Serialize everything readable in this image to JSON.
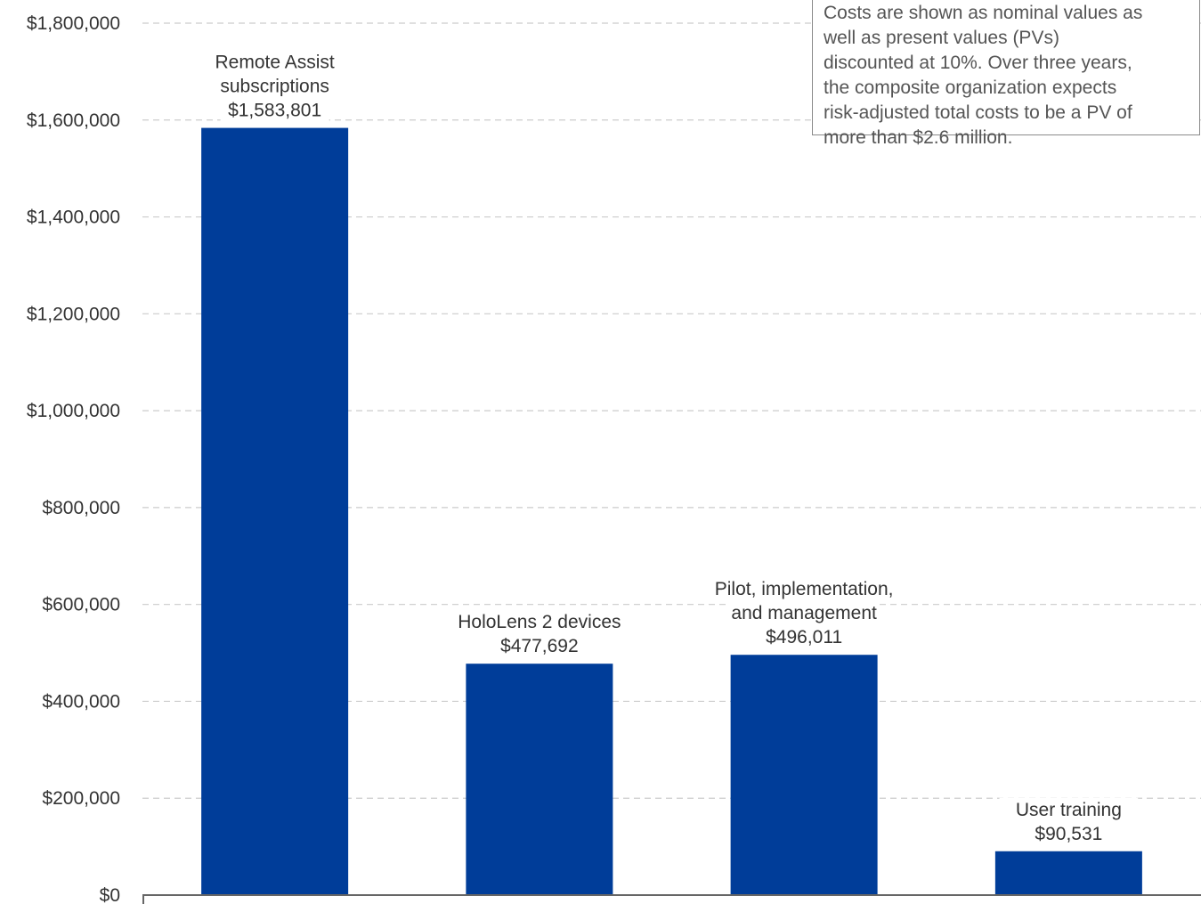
{
  "chart_data": {
    "type": "bar",
    "categories": [
      [
        "Remote Assist",
        "subscriptions"
      ],
      [
        "HoloLens 2 devices"
      ],
      [
        "Pilot, implementation,",
        "and management"
      ],
      [
        "User training"
      ]
    ],
    "values": [
      1583801,
      477692,
      496011,
      90531
    ],
    "value_labels": [
      "$1,583,801",
      "$477,692",
      "$496,011",
      "$90,531"
    ],
    "ylim": [
      0,
      1800000
    ],
    "ytick_labels": [
      "$0",
      "$200,000",
      "$400,000",
      "$600,000",
      "$800,000",
      "$1,000,000",
      "$1,200,000",
      "$1,400,000",
      "$1,600,000",
      "$1,800,000"
    ],
    "grid": true,
    "colors": {
      "bar": "#003d99",
      "grid": "#cccccc",
      "axis": "#666666"
    }
  },
  "callout": {
    "lines": [
      "Costs are shown as nominal values as",
      "well as present values (PVs)",
      "discounted at 10%. Over three years,",
      "the composite organization expects",
      "risk-adjusted total costs to be a PV of",
      "more than $2.6 million."
    ]
  }
}
